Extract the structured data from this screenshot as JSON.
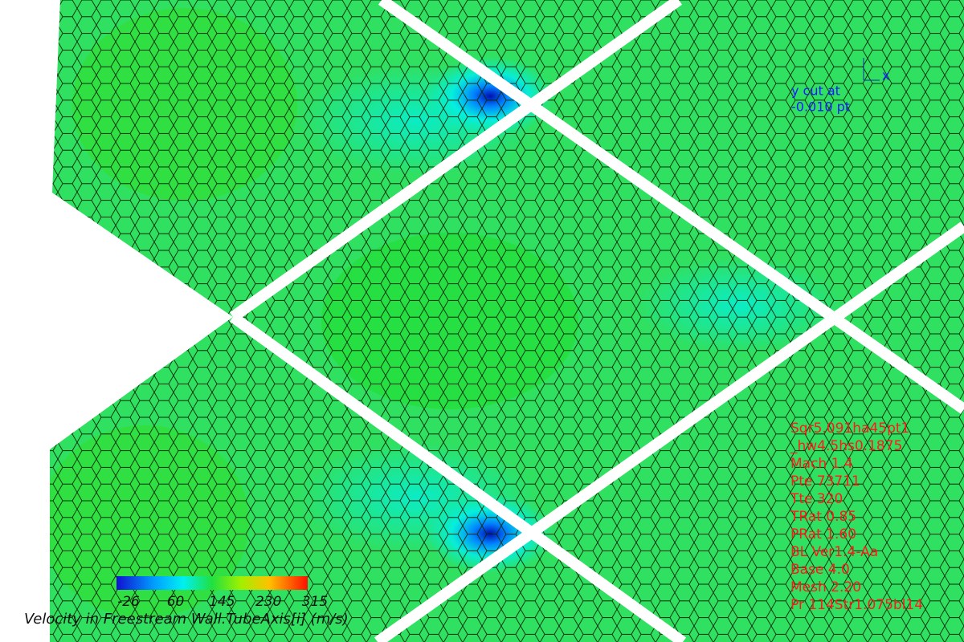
{
  "axis_triad": {
    "label": "x"
  },
  "cut_label": {
    "line1": "y cut at",
    "line2": "-0.010 pt"
  },
  "colorbar": {
    "ticks": [
      -26,
      60,
      145,
      230,
      315
    ],
    "title": "Velocity in Freestream Wall.TubeAxis[i] (m/s)"
  },
  "case_info": [
    "Sqr5.091ha45pt1",
    "_hw4.5hs0.1875",
    "Mach 1.4",
    "Pte 73711",
    "Tte 320",
    "TRat 0.85",
    "PRat 1.60",
    "BL Ver1.4-Aa",
    "Base 4.0",
    "Mesh 2.20",
    "Pr 114Str1.075bl14"
  ]
}
